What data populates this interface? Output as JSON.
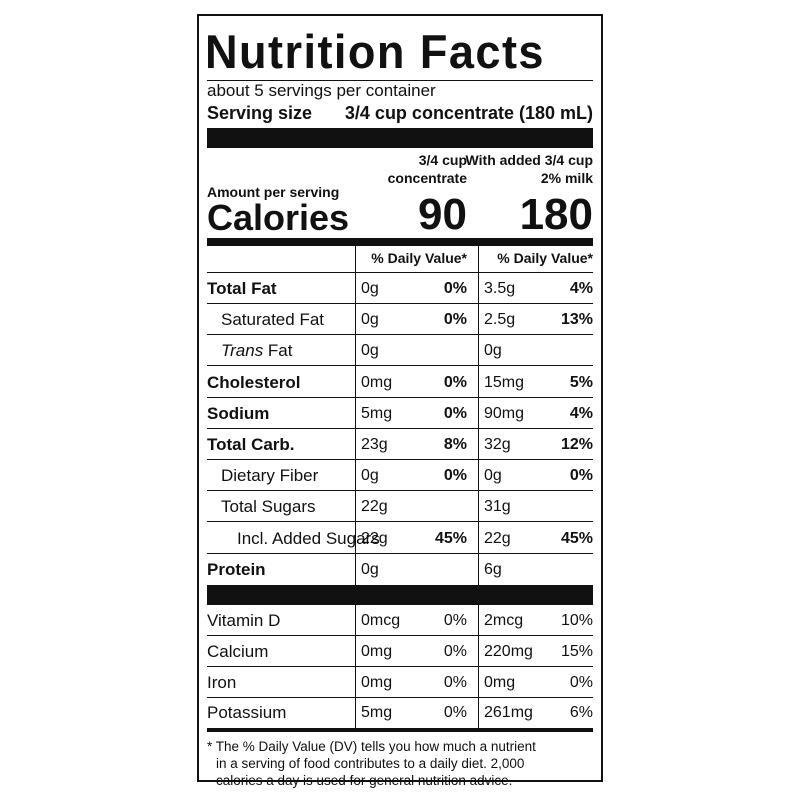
{
  "title": "Nutrition Facts",
  "servings_per_container": "about 5 servings per container",
  "serving_size": {
    "label": "Serving size",
    "value": "3/4 cup concentrate (180 mL)"
  },
  "columns": {
    "col1_line1": "3/4 cup",
    "col1_line2": "concentrate",
    "col2_line1": "With added 3/4 cup",
    "col2_line2": "2% milk"
  },
  "amount_per_serving": "Amount per serving",
  "calories": {
    "label": "Calories",
    "col1": "90",
    "col2": "180"
  },
  "dv_header": "% Daily Value*",
  "nutrients": [
    {
      "name": "Total Fat",
      "bold": true,
      "indent": 0,
      "a1": "0g",
      "d1": "0%",
      "a2": "3.5g",
      "d2": "4%"
    },
    {
      "name": "Saturated Fat",
      "bold": false,
      "indent": 1,
      "a1": "0g",
      "d1": "0%",
      "a2": "2.5g",
      "d2": "13%"
    },
    {
      "name_italic": "Trans",
      "name": " Fat",
      "bold": false,
      "indent": 1,
      "a1": "0g",
      "d1": "",
      "a2": "0g",
      "d2": ""
    },
    {
      "name": "Cholesterol",
      "bold": true,
      "indent": 0,
      "a1": "0mg",
      "d1": "0%",
      "a2": "15mg",
      "d2": "5%"
    },
    {
      "name": "Sodium",
      "bold": true,
      "indent": 0,
      "a1": "5mg",
      "d1": "0%",
      "a2": "90mg",
      "d2": "4%"
    },
    {
      "name": "Total Carb.",
      "bold": true,
      "indent": 0,
      "a1": "23g",
      "d1": "8%",
      "a2": "32g",
      "d2": "12%"
    },
    {
      "name": "Dietary Fiber",
      "bold": false,
      "indent": 1,
      "a1": "0g",
      "d1": "0%",
      "a2": "0g",
      "d2": "0%"
    },
    {
      "name": "Total Sugars",
      "bold": false,
      "indent": 1,
      "a1": "22g",
      "d1": "",
      "a2": "31g",
      "d2": ""
    },
    {
      "name": "Incl. Added Sugars",
      "bold": false,
      "indent": 2,
      "a1": "22g",
      "d1": "45%",
      "a2": "22g",
      "d2": "45%"
    },
    {
      "name": "Protein",
      "bold": true,
      "indent": 0,
      "a1": "0g",
      "d1": "",
      "a2": "6g",
      "d2": ""
    }
  ],
  "vitamins": [
    {
      "name": "Vitamin D",
      "a1": "0mcg",
      "d1": "0%",
      "a2": "2mcg",
      "d2": "10%"
    },
    {
      "name": "Calcium",
      "a1": "0mg",
      "d1": "0%",
      "a2": "220mg",
      "d2": "15%"
    },
    {
      "name": "Iron",
      "a1": "0mg",
      "d1": "0%",
      "a2": "0mg",
      "d2": "0%"
    },
    {
      "name": "Potassium",
      "a1": "5mg",
      "d1": "0%",
      "a2": "261mg",
      "d2": "6%"
    }
  ],
  "footnote": [
    "* The % Daily Value (DV) tells you how much a nutrient",
    "in a serving of food contributes to a daily diet. 2,000",
    "calories a day is used for general nutrition advice."
  ]
}
